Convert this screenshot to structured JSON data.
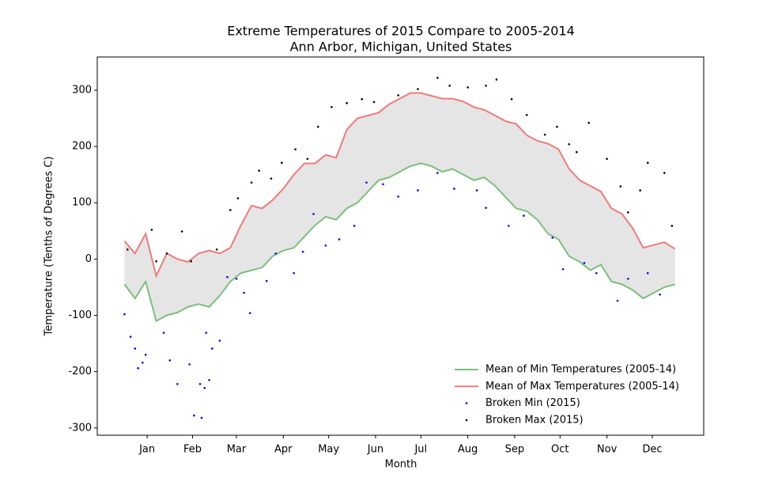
{
  "chart_data": {
    "type": "line",
    "title": "Extreme Temperatures of 2015 Compare to 2005-2014",
    "subtitle": "Ann Arbor, Michigan, United States",
    "x_label": "Month",
    "y_label": "Temperature (Tenths of Degrees C)",
    "xlim": [
      -18,
      383
    ],
    "ylim": [
      -313,
      359
    ],
    "xticks": [
      {
        "value": 15,
        "label": "Jan"
      },
      {
        "value": 45,
        "label": "Feb"
      },
      {
        "value": 74,
        "label": "Mar"
      },
      {
        "value": 105,
        "label": "Apr"
      },
      {
        "value": 135,
        "label": "May"
      },
      {
        "value": 166,
        "label": "Jun"
      },
      {
        "value": 196,
        "label": "Jul"
      },
      {
        "value": 227,
        "label": "Aug"
      },
      {
        "value": 258,
        "label": "Sep"
      },
      {
        "value": 288,
        "label": "Oct"
      },
      {
        "value": 319,
        "label": "Nov"
      },
      {
        "value": 349,
        "label": "Dec"
      }
    ],
    "yticks": [
      -300,
      -200,
      -100,
      0,
      100,
      200,
      300
    ],
    "fill_between": true,
    "fill_color": "#e5e5e5",
    "legend": "lower right",
    "series": [
      {
        "name": "Mean of Min Temperatures (2005-14)",
        "style": "line",
        "color": "#7cbf7c",
        "x": [
          0,
          7,
          14,
          21,
          28,
          35,
          42,
          49,
          56,
          63,
          70,
          77,
          84,
          91,
          98,
          105,
          112,
          119,
          126,
          133,
          140,
          147,
          154,
          161,
          168,
          175,
          182,
          189,
          196,
          203,
          210,
          217,
          224,
          231,
          238,
          245,
          252,
          259,
          266,
          273,
          280,
          287,
          294,
          301,
          308,
          315,
          322,
          329,
          336,
          343,
          350,
          357,
          364
        ],
        "values": [
          -45,
          -70,
          -40,
          -110,
          -100,
          -95,
          -85,
          -80,
          -85,
          -65,
          -40,
          -25,
          -20,
          -15,
          5,
          15,
          20,
          40,
          60,
          75,
          70,
          90,
          100,
          120,
          140,
          145,
          155,
          165,
          170,
          165,
          155,
          160,
          150,
          140,
          145,
          130,
          110,
          90,
          85,
          70,
          45,
          35,
          5,
          -5,
          -20,
          -10,
          -40,
          -45,
          -55,
          -70,
          -60,
          -50,
          -45
        ]
      },
      {
        "name": "Mean of Max Temperatures (2005-14)",
        "style": "line",
        "color": "#f07a7a",
        "x": [
          0,
          7,
          14,
          21,
          28,
          35,
          42,
          49,
          56,
          63,
          70,
          77,
          84,
          91,
          98,
          105,
          112,
          119,
          126,
          133,
          140,
          147,
          154,
          161,
          168,
          175,
          182,
          189,
          196,
          203,
          210,
          217,
          224,
          231,
          238,
          245,
          252,
          259,
          266,
          273,
          280,
          287,
          294,
          301,
          308,
          315,
          322,
          329,
          336,
          343,
          350,
          357,
          364
        ],
        "values": [
          32,
          10,
          45,
          -30,
          10,
          0,
          -5,
          10,
          15,
          10,
          20,
          60,
          95,
          90,
          105,
          125,
          150,
          170,
          170,
          185,
          180,
          230,
          250,
          255,
          260,
          275,
          285,
          295,
          295,
          290,
          285,
          285,
          280,
          270,
          265,
          255,
          245,
          240,
          220,
          210,
          205,
          195,
          160,
          140,
          130,
          120,
          90,
          80,
          55,
          20,
          25,
          30,
          18
        ]
      },
      {
        "name": "Broken Min (2015)",
        "style": "scatter",
        "color": "#0000ff",
        "x": [
          0,
          4,
          7,
          9,
          12,
          14,
          26,
          30,
          35,
          43,
          46,
          50,
          53,
          56,
          51,
          54,
          58,
          63,
          68,
          74,
          79,
          83,
          94,
          100,
          112,
          118,
          125,
          133,
          142,
          152,
          160,
          171,
          181,
          194,
          207,
          218,
          233,
          239,
          254,
          264,
          283,
          290,
          304,
          312,
          326,
          333,
          346,
          354
        ],
        "values": [
          -98,
          -138,
          -159,
          -194,
          -184,
          -170,
          -131,
          -180,
          -222,
          -187,
          -278,
          -222,
          -229,
          -215,
          -282,
          -131,
          -159,
          -145,
          -32,
          -35,
          -60,
          -96,
          -39,
          10,
          -25,
          13,
          80,
          24,
          35,
          59,
          136,
          133,
          111,
          122,
          153,
          125,
          122,
          91,
          59,
          77,
          38,
          -18,
          -7,
          -25,
          -74,
          -35,
          -25,
          -63
        ]
      },
      {
        "name": "Broken Max (2015)",
        "style": "scatter",
        "color": "#000000",
        "x": [
          2,
          18,
          21,
          28,
          38,
          44,
          61,
          70,
          75,
          84,
          89,
          97,
          104,
          113,
          121,
          128,
          137,
          147,
          157,
          165,
          181,
          194,
          207,
          215,
          227,
          239,
          246,
          256,
          266,
          278,
          286,
          294,
          299,
          307,
          319,
          328,
          333,
          341,
          346,
          357,
          362
        ],
        "values": [
          17,
          52,
          -4,
          10,
          49,
          -4,
          17,
          87,
          108,
          136,
          157,
          143,
          171,
          195,
          178,
          235,
          270,
          277,
          284,
          279,
          291,
          302,
          322,
          308,
          305,
          308,
          319,
          284,
          256,
          221,
          235,
          204,
          190,
          242,
          178,
          129,
          83,
          122,
          171,
          153,
          59
        ]
      }
    ]
  }
}
